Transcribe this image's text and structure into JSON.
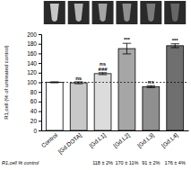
{
  "chart_data": {
    "type": "bar",
    "y_label": "R1,cell (% of untreated control)",
    "categories": [
      "Control",
      "[Gd.DOTA]",
      "[Gd.L1]",
      "[Gd.L2]",
      "[Gd.L3]",
      "[Gd.L4]"
    ],
    "values": [
      100,
      99,
      118,
      170,
      91,
      176
    ],
    "errors": [
      1,
      2,
      2,
      11,
      2,
      4
    ],
    "colors": [
      "#ffffff",
      "#c8c8c8",
      "#dcdcdc",
      "#a6a6a6",
      "#8f8f8f",
      "#6f6f6f"
    ],
    "significance": [
      null,
      [
        "ns"
      ],
      [
        "ns",
        "###"
      ],
      [
        "***"
      ],
      [
        "ns"
      ],
      [
        "***"
      ]
    ],
    "reference_line": 100,
    "footer_label": "R1,cell % control",
    "footer_values": [
      null,
      null,
      "118 ± 2%",
      "170 ± 11%",
      "91 ± 2%",
      "176 ± 4%"
    ],
    "ylim": [
      0,
      200
    ],
    "yticks": [
      0,
      20,
      40,
      60,
      80,
      100,
      120,
      140,
      160,
      180,
      200
    ],
    "grid": false
  }
}
